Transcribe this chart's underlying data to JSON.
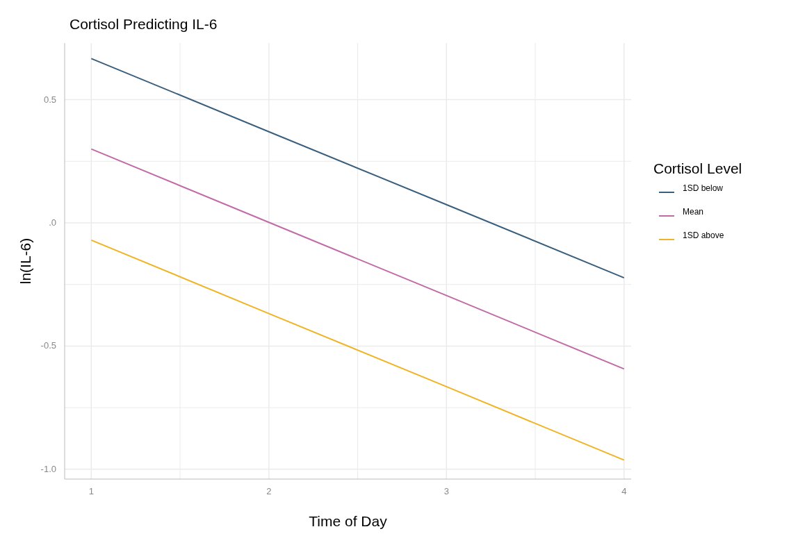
{
  "chart_data": {
    "type": "line",
    "title": "Cortisol Predicting IL-6",
    "xlabel": "Time of Day",
    "ylabel": "ln(IL-6)",
    "legend_title": "Cortisol Level",
    "x": [
      1,
      2,
      3,
      4
    ],
    "series": [
      {
        "name": "1SD below",
        "color": "#3a5f7d",
        "values": [
          0.667,
          0.37,
          0.074,
          -0.223
        ]
      },
      {
        "name": "Mean",
        "color": "#c06ba8",
        "values": [
          0.3,
          0.002,
          -0.295,
          -0.593
        ]
      },
      {
        "name": "1SD above",
        "color": "#f0b323",
        "values": [
          -0.07,
          -0.368,
          -0.665,
          -0.963
        ]
      }
    ],
    "xlim": [
      0.85,
      4.04
    ],
    "ylim": [
      -1.04,
      0.73
    ],
    "xticks": [
      1,
      {
        "value": 1.5,
        "label": null
      },
      2,
      {
        "value": 2.5,
        "label": null
      },
      3,
      {
        "value": 3.5,
        "label": null
      },
      4
    ],
    "yticks": [
      {
        "value": -1,
        "label": "-1.0"
      },
      {
        "value": -0.75,
        "label": null
      },
      {
        "value": -0.5,
        "label": "-0.5"
      },
      {
        "value": -0.25,
        "label": null
      },
      {
        "value": 0,
        "label": ".0"
      },
      {
        "value": 0.25,
        "label": null
      },
      {
        "value": 0.5,
        "label": "0.5"
      }
    ],
    "grid": true,
    "legend": "right",
    "marker": "none",
    "line_style": "solid"
  }
}
